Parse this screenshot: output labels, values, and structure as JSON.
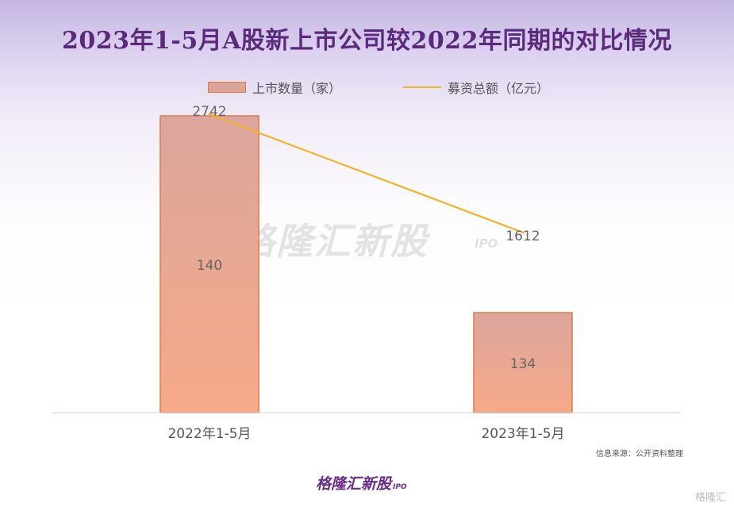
{
  "title": "2023年1-5月A股新上市公司较2022年同期的对比情况",
  "watermark": "格隆汇新股",
  "watermark_sub": "IPO",
  "source_note": "信息来源：公开资料整理",
  "brand": {
    "name": "格隆汇新股",
    "sub": "IPO"
  },
  "corner_mark": "格隆汇",
  "colors": {
    "bar_top": "#dba69d",
    "bar_bottom": "#f7a988",
    "bar_border": "#e07a45",
    "line": "#f0b323",
    "title": "#5b2a7d"
  },
  "chart_data": {
    "type": "bar",
    "categories": [
      "2022年1-5月",
      "2023年1-5月"
    ],
    "series": [
      {
        "name": "上市数量（家）",
        "type": "bar",
        "values": [
          140,
          134
        ]
      },
      {
        "name": "募资总额（亿元）",
        "type": "line",
        "values": [
          2742,
          1612
        ]
      }
    ],
    "legend_position": "top",
    "grid": false
  }
}
